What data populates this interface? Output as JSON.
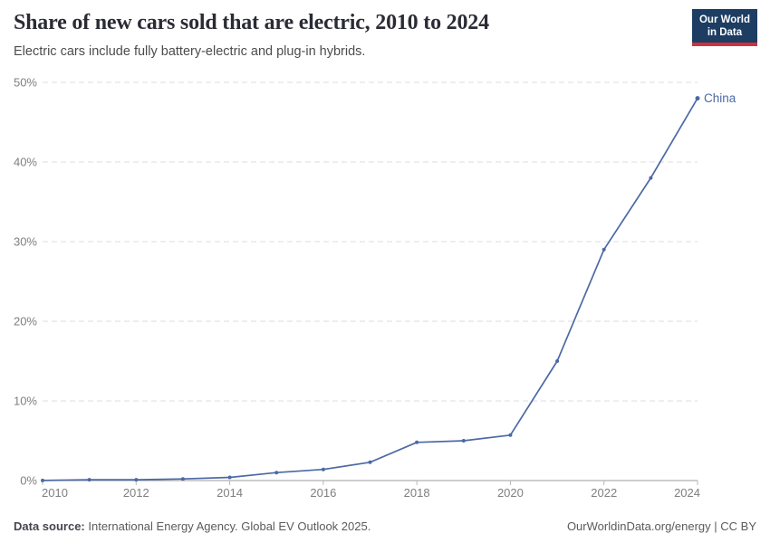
{
  "header": {
    "title": "Share of new cars sold that are electric, 2010 to 2024",
    "subtitle": "Electric cars include fully battery-electric and plug-in hybrids."
  },
  "logo": {
    "line1": "Our World",
    "line2": "in Data",
    "bg_color": "#1d3d63",
    "stripe_color": "#cf303e"
  },
  "chart_data": {
    "type": "line",
    "title": "Share of new cars sold that are electric, 2010 to 2024",
    "x": [
      2010,
      2011,
      2012,
      2013,
      2014,
      2015,
      2016,
      2017,
      2018,
      2019,
      2020,
      2021,
      2022,
      2023,
      2024
    ],
    "series": [
      {
        "name": "China",
        "color": "#4b69a5",
        "values": [
          0.01,
          0.1,
          0.1,
          0.2,
          0.4,
          1.0,
          1.4,
          2.3,
          4.8,
          5.0,
          5.7,
          15,
          29,
          38,
          48
        ]
      }
    ],
    "xlim": [
      2010,
      2024
    ],
    "ylim": [
      0,
      50
    ],
    "x_ticks": [
      2010,
      2012,
      2014,
      2016,
      2018,
      2020,
      2022,
      2024
    ],
    "x_tick_labels": [
      "2010",
      "2012",
      "2014",
      "2016",
      "2018",
      "2020",
      "2022",
      "2024"
    ],
    "y_ticks": [
      0,
      10,
      20,
      30,
      40,
      50
    ],
    "y_tick_labels": [
      "0%",
      "10%",
      "20%",
      "30%",
      "40%",
      "50%"
    ],
    "grid": "horizontal-dashed",
    "legend_position": "end-of-line-label",
    "xlabel": "",
    "ylabel": ""
  },
  "footer": {
    "source_label": "Data source:",
    "source_text": "International Energy Agency. Global EV Outlook 2025.",
    "right_text": "OurWorldinData.org/energy | CC BY"
  }
}
